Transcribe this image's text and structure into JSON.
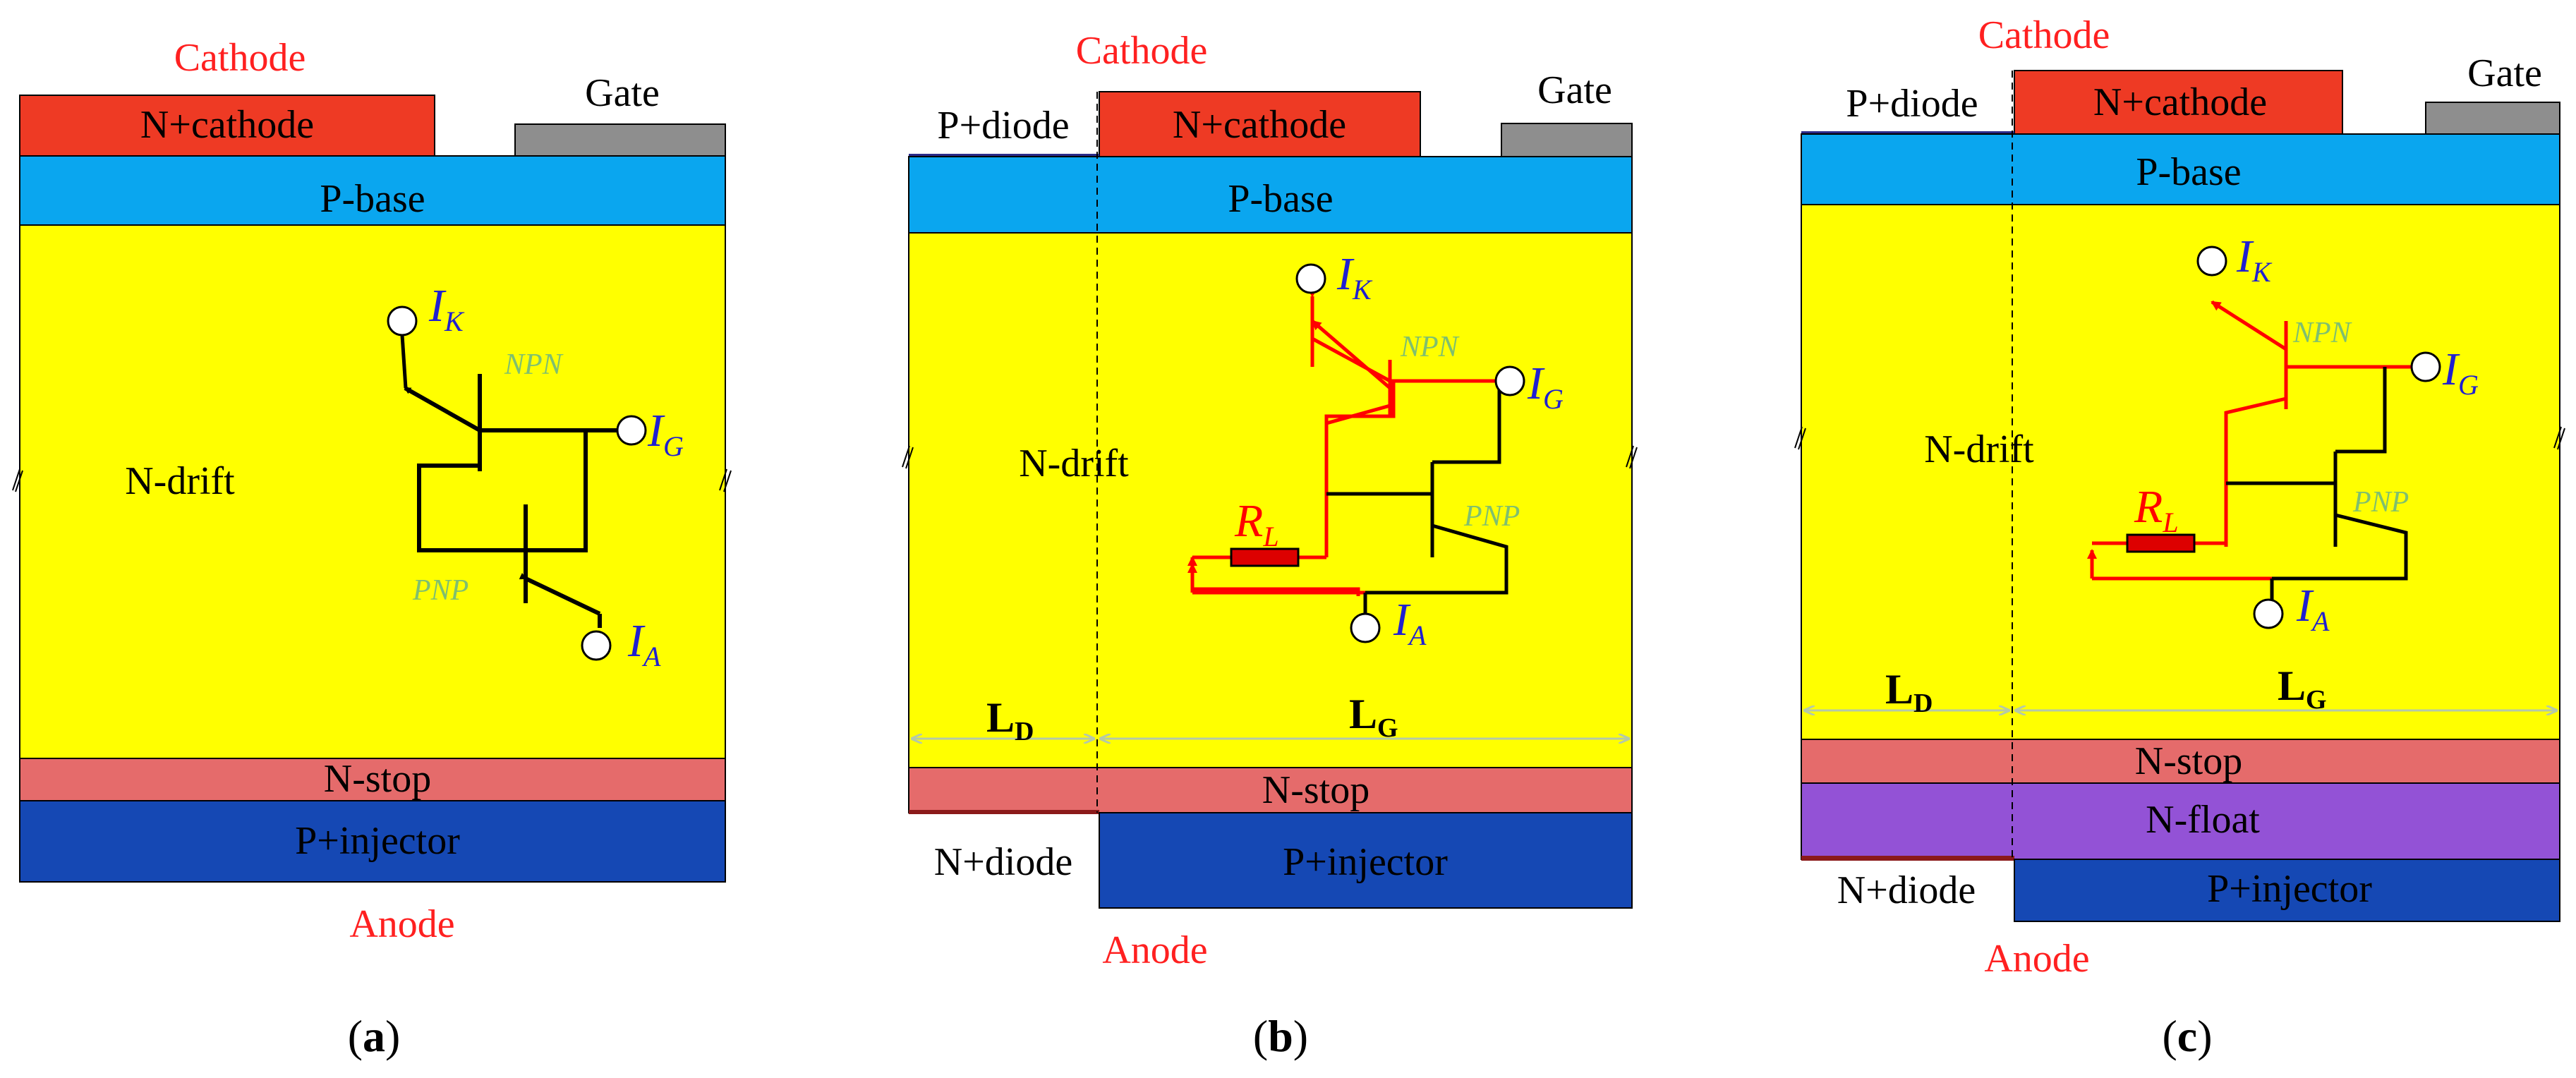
{
  "colors": {
    "cathode_metal": "#ee3a24",
    "gate_metal": "#8e8e8e",
    "p_base": "#0aa6ef",
    "n_drift": "#ffff00",
    "n_stop": "#e56b6b",
    "p_injector": "#1548b4",
    "n_float": "#9352d6",
    "thin_diode": "#8b1a1a",
    "terminal_label": "#ff2020",
    "symbol_text": "#2020d0",
    "transistor_label": "#7fbf6f",
    "resistor_path": "#ff0000",
    "dimension_arrow": "#b5c9a8"
  },
  "panel_a": {
    "caption": "a",
    "cathode": "Cathode",
    "n_cathode": "N+cathode",
    "gate": "Gate",
    "p_base": "P-base",
    "n_drift": "N-drift",
    "n_stop": "N-stop",
    "p_injector": "P+injector",
    "anode": "Anode",
    "npn": "NPN",
    "pnp": "PNP",
    "ik": {
      "main": "I",
      "sub": "K"
    },
    "ig": {
      "main": "I",
      "sub": "G"
    },
    "ia": {
      "main": "I",
      "sub": "A"
    }
  },
  "panel_b": {
    "caption": "b",
    "cathode": "Cathode",
    "p_diode": "P+diode",
    "n_cathode": "N+cathode",
    "gate": "Gate",
    "p_base": "P-base",
    "n_drift": "N-drift",
    "n_stop": "N-stop",
    "n_diode": "N+diode",
    "p_injector": "P+injector",
    "anode": "Anode",
    "npn": "NPN",
    "pnp": "PNP",
    "ik": {
      "main": "I",
      "sub": "K"
    },
    "ig": {
      "main": "I",
      "sub": "G"
    },
    "ia": {
      "main": "I",
      "sub": "A"
    },
    "rl": {
      "main": "R",
      "sub": "L"
    },
    "ld": {
      "main": "L",
      "sub": "D"
    },
    "lg": {
      "main": "L",
      "sub": "G"
    }
  },
  "panel_c": {
    "caption": "c",
    "cathode": "Cathode",
    "p_diode": "P+diode",
    "n_cathode": "N+cathode",
    "gate": "Gate",
    "p_base": "P-base",
    "n_drift": "N-drift",
    "n_stop": "N-stop",
    "n_float": "N-float",
    "n_diode": "N+diode",
    "p_injector": "P+injector",
    "anode": "Anode",
    "npn": "NPN",
    "pnp": "PNP",
    "ik": {
      "main": "I",
      "sub": "K"
    },
    "ig": {
      "main": "I",
      "sub": "G"
    },
    "ia": {
      "main": "I",
      "sub": "A"
    },
    "rl": {
      "main": "R",
      "sub": "L"
    },
    "ld": {
      "main": "L",
      "sub": "D"
    },
    "lg": {
      "main": "L",
      "sub": "G"
    }
  }
}
